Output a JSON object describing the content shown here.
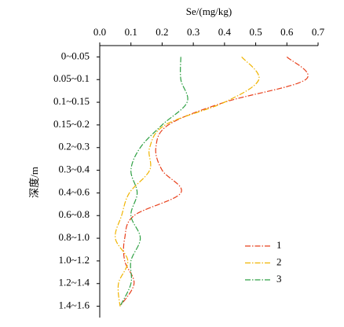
{
  "chart_data": {
    "type": "line",
    "orientation": "horizontal",
    "xlabel": "Se/(mg/kg)",
    "ylabel": "深度/m",
    "categories": [
      "0~0.05",
      "0.05~0.1",
      "0.1~0.15",
      "0.15~0.2",
      "0.2~0.3",
      "0.3~0.4",
      "0.4~0.6",
      "0.6~0.8",
      "0.8~1.0",
      "1.0~1.2",
      "1.2~1.4",
      "1.4~1.6"
    ],
    "xlim": [
      0,
      0.7
    ],
    "xticks": [
      {
        "value": 0,
        "label": "0.0"
      },
      0.1,
      0.2,
      0.3,
      0.4,
      0.5,
      0.6,
      0.7
    ],
    "legend": "lower right",
    "series": [
      {
        "name": "1",
        "color": "#e8401c",
        "values": [
          0.6,
          0.66,
          0.4,
          0.22,
          0.18,
          0.2,
          0.26,
          0.11,
          0.08,
          0.08,
          0.11,
          0.065
        ]
      },
      {
        "name": "2",
        "color": "#f0b400",
        "values": [
          0.455,
          0.51,
          0.4,
          0.21,
          0.16,
          0.16,
          0.095,
          0.07,
          0.05,
          0.09,
          0.06,
          0.065
        ]
      },
      {
        "name": "3",
        "color": "#2ea043",
        "values": [
          0.26,
          0.26,
          0.28,
          0.2,
          0.13,
          0.1,
          0.12,
          0.1,
          0.13,
          0.1,
          0.1,
          0.065
        ]
      }
    ]
  }
}
